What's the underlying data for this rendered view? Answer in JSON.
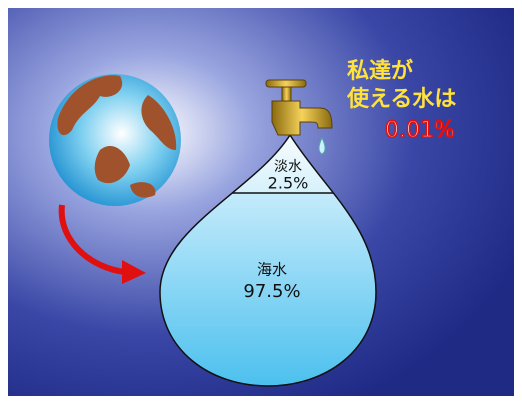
{
  "callout": {
    "lines": [
      "私達が",
      "使える水は"
    ],
    "amount": "0.01%"
  },
  "fresh_water": {
    "label": "淡水",
    "share": "2.5%"
  },
  "sea_water": {
    "label": "海水",
    "share": "97.5%"
  }
}
